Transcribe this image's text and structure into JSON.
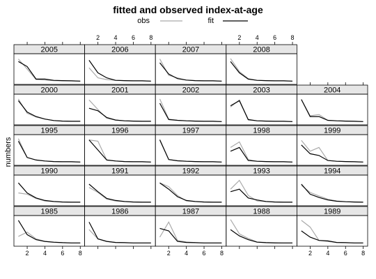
{
  "chart_data": {
    "type": "line",
    "title": "fitted and observed index-at-age",
    "ylabel": "numbers",
    "xlabel": "",
    "xlim": [
      0.5,
      8.5
    ],
    "x_ticks": [
      2,
      4,
      6,
      8
    ],
    "legend": {
      "placement": "top",
      "entries": [
        {
          "label": "obs",
          "color": "#aaaaaa"
        },
        {
          "label": "fit",
          "color": "#000000"
        }
      ]
    },
    "x": [
      1,
      2,
      3,
      4,
      5,
      6,
      7,
      8
    ],
    "panels": [
      {
        "year": "1985",
        "obs": [
          0.28,
          0.45,
          0.18,
          0.08,
          0.04,
          0.03,
          0.02,
          0.02
        ],
        "fit": [
          0.92,
          0.35,
          0.15,
          0.08,
          0.05,
          0.03,
          0.02,
          0.02
        ]
      },
      {
        "year": "1986",
        "obs": [
          0.55,
          0.18,
          0.08,
          0.04,
          0.03,
          0.02,
          0.02,
          0.02
        ],
        "fit": [
          0.85,
          0.18,
          0.08,
          0.04,
          0.03,
          0.02,
          0.02,
          0.02
        ]
      },
      {
        "year": "1987",
        "obs": [
          0.25,
          0.85,
          0.12,
          0.06,
          0.03,
          0.02,
          0.02,
          0.02
        ],
        "fit": [
          0.6,
          0.5,
          0.08,
          0.04,
          0.03,
          0.02,
          0.02,
          0.02
        ]
      },
      {
        "year": "1988",
        "obs": [
          0.95,
          0.38,
          0.2,
          0.06,
          0.04,
          0.03,
          0.02,
          0.02
        ],
        "fit": [
          0.55,
          0.3,
          0.15,
          0.05,
          0.03,
          0.02,
          0.02,
          0.02
        ]
      },
      {
        "year": "1989",
        "obs": [
          0.92,
          0.65,
          0.12,
          0.08,
          0.04,
          0.03,
          0.02,
          0.02
        ],
        "fit": [
          0.5,
          0.25,
          0.12,
          0.1,
          0.04,
          0.03,
          0.02,
          0.02
        ]
      },
      {
        "year": "1990",
        "obs": [
          0.4,
          0.35,
          0.18,
          0.08,
          0.05,
          0.04,
          0.03,
          0.03
        ],
        "fit": [
          0.8,
          0.4,
          0.2,
          0.1,
          0.06,
          0.04,
          0.03,
          0.03
        ]
      },
      {
        "year": "1991",
        "obs": [
          0.62,
          0.42,
          0.15,
          0.08,
          0.05,
          0.04,
          0.03,
          0.03
        ],
        "fit": [
          0.75,
          0.45,
          0.18,
          0.1,
          0.06,
          0.04,
          0.03,
          0.03
        ]
      },
      {
        "year": "1992",
        "obs": [
          0.8,
          0.65,
          0.3,
          0.08,
          0.05,
          0.04,
          0.03,
          0.03
        ],
        "fit": [
          0.8,
          0.55,
          0.25,
          0.1,
          0.06,
          0.04,
          0.03,
          0.03
        ]
      },
      {
        "year": "1993",
        "obs": [
          0.55,
          0.9,
          0.3,
          0.08,
          0.05,
          0.04,
          0.03,
          0.03
        ],
        "fit": [
          0.45,
          0.55,
          0.2,
          0.12,
          0.06,
          0.04,
          0.03,
          0.03
        ]
      },
      {
        "year": "1994",
        "obs": [
          0.7,
          0.42,
          0.28,
          0.15,
          0.08,
          0.05,
          0.04,
          0.03
        ],
        "fit": [
          0.75,
          0.35,
          0.22,
          0.12,
          0.07,
          0.05,
          0.04,
          0.03
        ]
      },
      {
        "year": "1995",
        "obs": [
          0.95,
          0.2,
          0.1,
          0.06,
          0.04,
          0.03,
          0.03,
          0.02
        ],
        "fit": [
          0.85,
          0.2,
          0.1,
          0.06,
          0.04,
          0.03,
          0.03,
          0.02
        ]
      },
      {
        "year": "1996",
        "obs": [
          0.9,
          0.85,
          0.1,
          0.06,
          0.04,
          0.03,
          0.03,
          0.02
        ],
        "fit": [
          0.9,
          0.5,
          0.1,
          0.06,
          0.04,
          0.03,
          0.03,
          0.02
        ]
      },
      {
        "year": "1997",
        "obs": [
          0.92,
          0.12,
          0.07,
          0.05,
          0.04,
          0.03,
          0.03,
          0.02
        ],
        "fit": [
          0.9,
          0.12,
          0.07,
          0.05,
          0.04,
          0.03,
          0.03,
          0.02
        ]
      },
      {
        "year": "1998",
        "obs": [
          0.6,
          0.82,
          0.12,
          0.05,
          0.04,
          0.03,
          0.03,
          0.02
        ],
        "fit": [
          0.45,
          0.6,
          0.08,
          0.05,
          0.04,
          0.03,
          0.03,
          0.02
        ]
      },
      {
        "year": "1999",
        "obs": [
          0.88,
          0.45,
          0.6,
          0.08,
          0.05,
          0.04,
          0.03,
          0.02
        ],
        "fit": [
          0.7,
          0.35,
          0.28,
          0.08,
          0.05,
          0.04,
          0.03,
          0.02
        ]
      },
      {
        "year": "2000",
        "obs": [
          0.92,
          0.35,
          0.2,
          0.12,
          0.06,
          0.04,
          0.03,
          0.03
        ],
        "fit": [
          0.85,
          0.4,
          0.22,
          0.12,
          0.06,
          0.04,
          0.03,
          0.03
        ]
      },
      {
        "year": "2001",
        "obs": [
          0.88,
          0.5,
          0.15,
          0.08,
          0.05,
          0.04,
          0.03,
          0.03
        ],
        "fit": [
          0.55,
          0.45,
          0.18,
          0.08,
          0.05,
          0.04,
          0.03,
          0.03
        ]
      },
      {
        "year": "2002",
        "obs": [
          0.92,
          0.12,
          0.07,
          0.05,
          0.04,
          0.03,
          0.03,
          0.02
        ],
        "fit": [
          0.75,
          0.1,
          0.07,
          0.05,
          0.04,
          0.03,
          0.03,
          0.02
        ]
      },
      {
        "year": "2003",
        "obs": [
          0.6,
          0.88,
          0.08,
          0.05,
          0.04,
          0.03,
          0.03,
          0.02
        ],
        "fit": [
          0.65,
          0.85,
          0.1,
          0.05,
          0.04,
          0.03,
          0.03,
          0.02
        ]
      },
      {
        "year": "2004",
        "obs": [
          0.9,
          0.25,
          0.3,
          0.07,
          0.05,
          0.04,
          0.03,
          0.02
        ],
        "fit": [
          0.9,
          0.22,
          0.22,
          0.07,
          0.05,
          0.04,
          0.03,
          0.02
        ]
      },
      {
        "year": "2005",
        "obs": [
          0.9,
          0.5,
          0.08,
          0.06,
          0.04,
          0.03,
          0.03,
          0.02
        ],
        "fit": [
          0.8,
          0.6,
          0.1,
          0.1,
          0.05,
          0.04,
          0.03,
          0.02
        ]
      },
      {
        "year": "2006",
        "obs": [
          0.55,
          0.15,
          0.08,
          0.05,
          0.04,
          0.03,
          0.03,
          0.02
        ],
        "fit": [
          0.85,
          0.35,
          0.15,
          0.05,
          0.04,
          0.03,
          0.03,
          0.02
        ]
      },
      {
        "year": "2007",
        "obs": [
          0.9,
          0.25,
          0.15,
          0.06,
          0.04,
          0.03,
          0.03,
          0.02
        ],
        "fit": [
          0.75,
          0.3,
          0.12,
          0.06,
          0.04,
          0.03,
          0.03,
          0.02
        ]
      },
      {
        "year": "2008",
        "obs": [
          0.92,
          0.4,
          0.12,
          0.05,
          0.04,
          0.03,
          0.03,
          0.02
        ],
        "fit": [
          0.8,
          0.35,
          0.1,
          0.05,
          0.04,
          0.03,
          0.03,
          0.02
        ]
      }
    ]
  }
}
